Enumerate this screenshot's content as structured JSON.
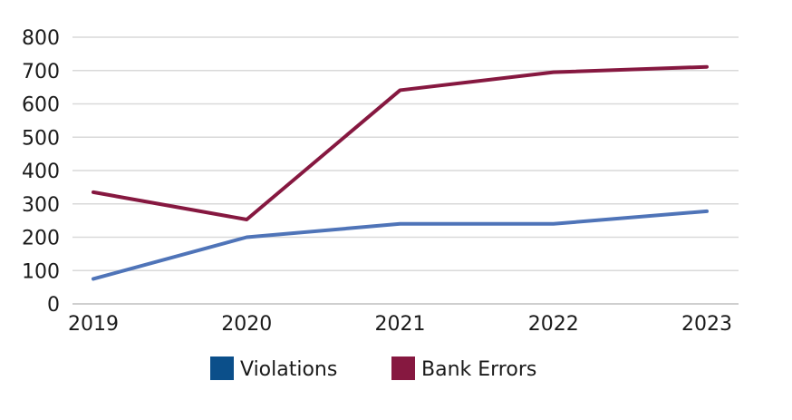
{
  "chart_data": {
    "type": "line",
    "title": "",
    "xlabel": "",
    "ylabel": "",
    "categories": [
      "2019",
      "2020",
      "2021",
      "2022",
      "2023"
    ],
    "ylim": [
      0,
      800
    ],
    "yticks": [
      "0",
      "100",
      "200",
      "300",
      "400",
      "500",
      "600",
      "700",
      "800"
    ],
    "grid": true,
    "legend_position": "bottom",
    "series": [
      {
        "name": "Violations",
        "values": [
          75,
          200,
          240,
          240,
          278
        ],
        "line_color": "#4f74b8",
        "legend_color": "#0b4f8a"
      },
      {
        "name": "Bank Errors",
        "values": [
          335,
          253,
          641,
          695,
          711
        ],
        "line_color": "#861840",
        "legend_color": "#861840"
      }
    ]
  }
}
